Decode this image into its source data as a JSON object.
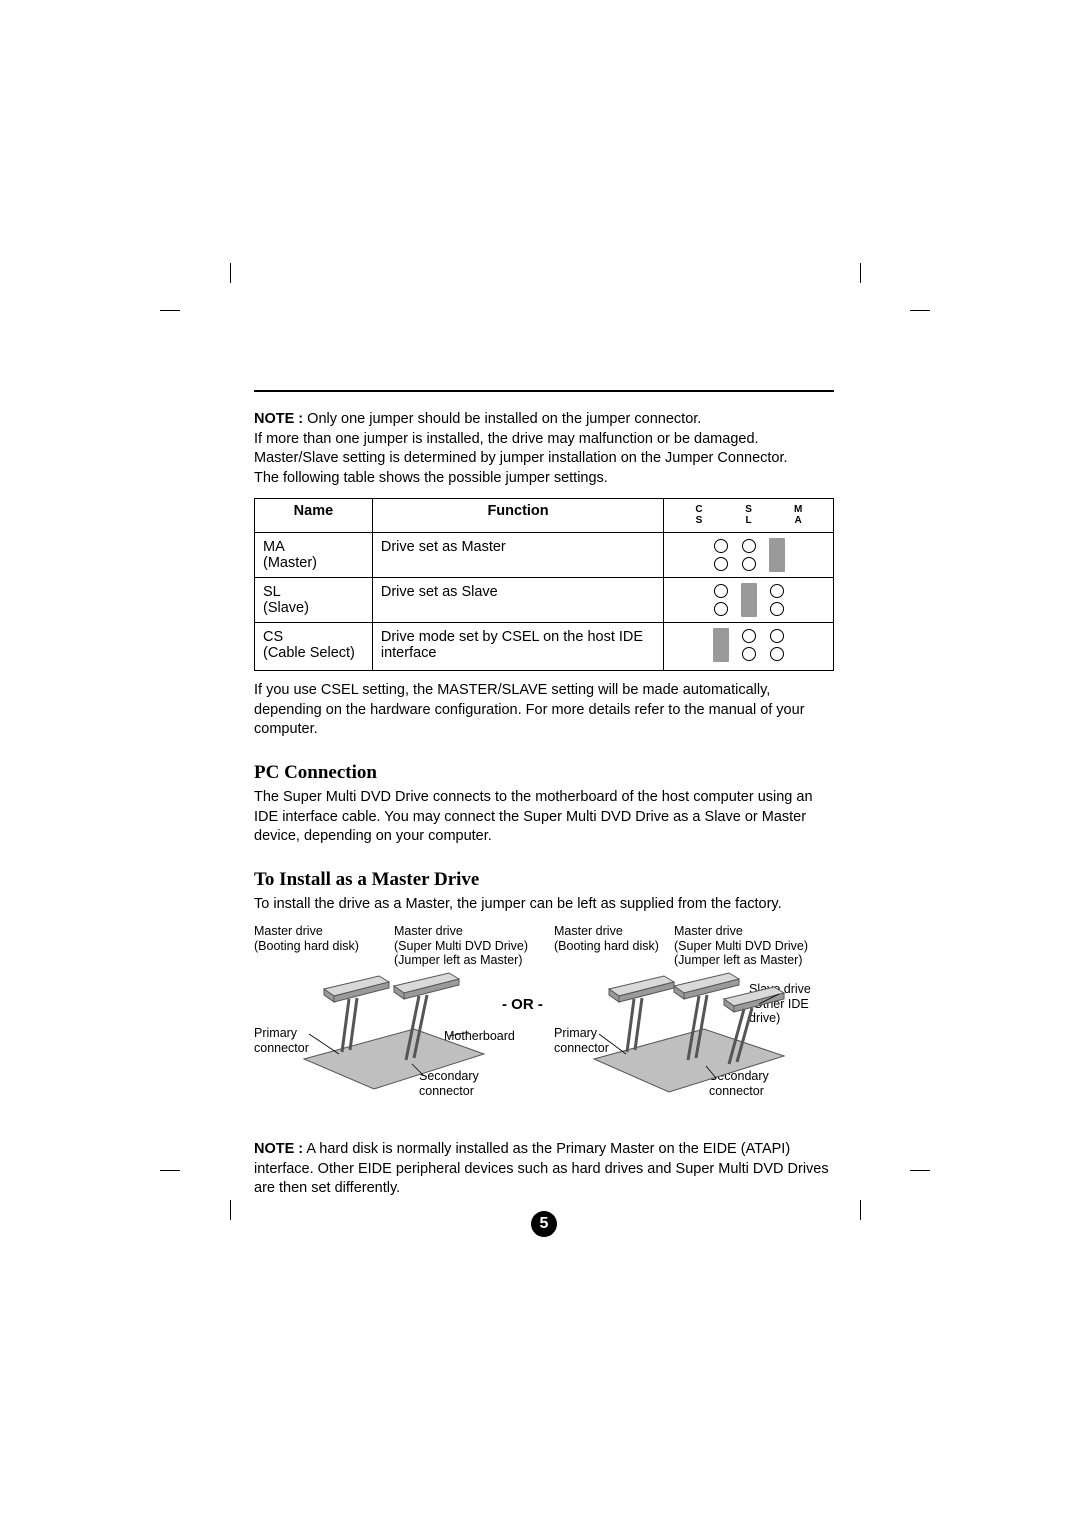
{
  "colors": {
    "text": "#000000",
    "background": "#ffffff",
    "jumper_fill": "#9a9a9a",
    "mobo_fill": "#bfbfbf",
    "mobo_edge": "#555555"
  },
  "note_top": {
    "lead": "NOTE :",
    "line1_rest": " Only one jumper should be installed on the jumper connector.",
    "line2": "If more than one jumper is installed, the drive may malfunction or be damaged.",
    "line3": "Master/Slave setting is determined by jumper installation on the Jumper Connector.",
    "line4": "The following table shows the possible jumper settings."
  },
  "table": {
    "head_name": "Name",
    "head_function": "Function",
    "pin_cols": [
      {
        "top": "C",
        "bot": "S"
      },
      {
        "top": "S",
        "bot": "L"
      },
      {
        "top": "M",
        "bot": "A"
      }
    ],
    "rows": [
      {
        "name_l1": "MA",
        "name_l2": "(Master)",
        "func": "Drive set as Master",
        "pins": [
          "open",
          "open",
          "jumper"
        ]
      },
      {
        "name_l1": "SL",
        "name_l2": "(Slave)",
        "func": "Drive set as Slave",
        "pins": [
          "open",
          "jumper",
          "open"
        ]
      },
      {
        "name_l1": "CS",
        "name_l2": "(Cable Select)",
        "func": "Drive mode set by CSEL on the host IDE interface",
        "pins": [
          "jumper",
          "open",
          "open"
        ]
      }
    ]
  },
  "after_table": "If you use CSEL setting, the MASTER/SLAVE setting will be made automatically, depending on the hardware configuration. For more details refer to the manual of your computer.",
  "pc_conn": {
    "heading": "PC Connection",
    "body": "The Super Multi DVD Drive connects to the motherboard of the host computer using an IDE interface cable. You may connect the Super Multi DVD Drive as a Slave or Master device, depending on your computer."
  },
  "install_master": {
    "heading": "To Install as a Master Drive",
    "body": "To install the drive as a Master, the jumper can be left as supplied from the factory."
  },
  "diagram": {
    "or_label": "- OR -",
    "left": {
      "master_drive_boot_l1": "Master drive",
      "master_drive_boot_l2": "(Booting hard disk)",
      "master_drive_dvd_l1": "Master drive",
      "master_drive_dvd_l2": "(Super Multi DVD Drive)",
      "master_drive_dvd_l3": "(Jumper left as Master)",
      "primary_l1": "Primary",
      "primary_l2": "connector",
      "motherboard": "Motherboard",
      "secondary_l1": "Secondary",
      "secondary_l2": "connector"
    },
    "right": {
      "master_drive_boot_l1": "Master drive",
      "master_drive_boot_l2": "(Booting hard disk)",
      "master_drive_dvd_l1": "Master drive",
      "master_drive_dvd_l2": "(Super Multi DVD Drive)",
      "master_drive_dvd_l3": "(Jumper left as Master)",
      "slave_l1": "Slave drive",
      "slave_l2": "(Other IDE",
      "slave_l3": "drive)",
      "primary_l1": "Primary",
      "primary_l2": "connector",
      "secondary_l1": "Secondary",
      "secondary_l2": "connector"
    }
  },
  "note_bottom": {
    "lead": "NOTE :",
    "rest": " A hard disk is normally installed as the Primary Master on the EIDE (ATAPI) interface. Other EIDE peripheral devices such as hard drives and Super Multi DVD Drives are then set differently."
  },
  "page_number": "5"
}
